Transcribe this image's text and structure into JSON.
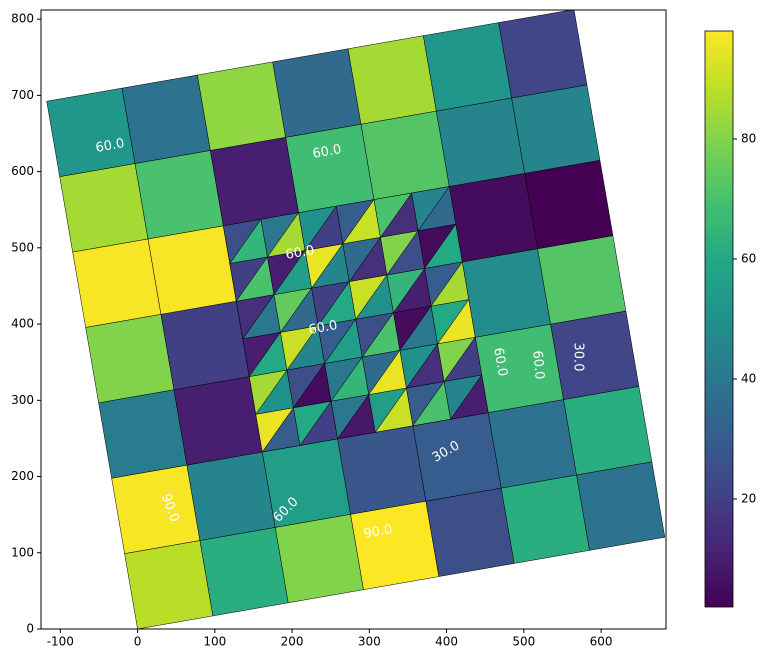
{
  "chart_data": {
    "type": "mesh",
    "xlim": [
      -125,
      684
    ],
    "ylim": [
      0,
      812
    ],
    "xticks": [
      -100,
      0,
      100,
      200,
      300,
      400,
      500,
      600
    ],
    "yticks": [
      0,
      100,
      200,
      300,
      400,
      500,
      600,
      700,
      800
    ],
    "colormap": "viridis",
    "clim": [
      2,
      98
    ],
    "colorbar_ticks": [
      20,
      40,
      60,
      80
    ],
    "values": [
      [
        88,
        62,
        80,
        98,
        25,
        62,
        38
      ],
      [
        97,
        45,
        55,
        28,
        30,
        38,
        62
      ],
      [
        42,
        10,
        45,
        45,
        45,
        68,
        22
      ],
      [
        80,
        20,
        45,
        45,
        45,
        48,
        72
      ],
      [
        97,
        97,
        45,
        45,
        45,
        5,
        2
      ],
      [
        85,
        70,
        10,
        68,
        72,
        45,
        45
      ],
      [
        52,
        38,
        82,
        35,
        85,
        52,
        22
      ]
    ],
    "tri_values": [
      95,
      30,
      20,
      60,
      40,
      8,
      90,
      55,
      30,
      70,
      10,
      45,
      50,
      85,
      25,
      5,
      65,
      40,
      35,
      95,
      15,
      50,
      80,
      20,
      10,
      60,
      45,
      90,
      30,
      55,
      70,
      25,
      5,
      40,
      95,
      60,
      40,
      15,
      75,
      35,
      60,
      20,
      90,
      50,
      10,
      65,
      30,
      85,
      20,
      70,
      55,
      10,
      95,
      45,
      15,
      35,
      80,
      25,
      60,
      5,
      65,
      25,
      40,
      85,
      20,
      50,
      30,
      90,
      15,
      70,
      45,
      35
    ],
    "contour_labels": [
      "60.0",
      "60.0",
      "60.0",
      "60.0",
      "30.0",
      "30.0",
      "60.0",
      "60.0",
      "90.0",
      "90.0",
      "60.0"
    ]
  }
}
